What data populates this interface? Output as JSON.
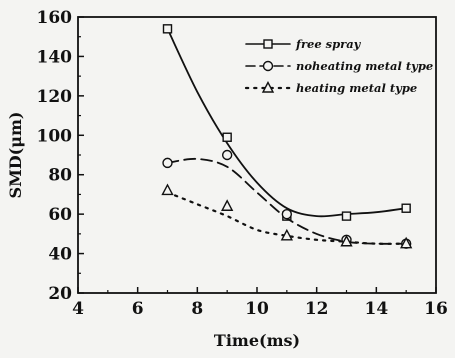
{
  "chart_data": {
    "type": "line",
    "title": "",
    "xlabel": "Time(ms)",
    "ylabel": "SMD(μm)",
    "xlim": [
      4,
      16
    ],
    "ylim": [
      20,
      160
    ],
    "xticks": [
      4,
      6,
      8,
      10,
      12,
      14,
      16
    ],
    "yticks": [
      20,
      40,
      60,
      80,
      100,
      120,
      140,
      160
    ],
    "grid": false,
    "legend_position": "top-right",
    "x": [
      7,
      9,
      11,
      13,
      15
    ],
    "series": [
      {
        "name": "free spray",
        "marker": "square",
        "line_style": "solid",
        "values": [
          154,
          99,
          59,
          59,
          63
        ],
        "curve": [
          [
            7,
            154
          ],
          [
            8,
            122
          ],
          [
            9,
            96
          ],
          [
            10,
            76
          ],
          [
            11,
            63
          ],
          [
            12,
            59
          ],
          [
            13,
            60
          ],
          [
            14,
            61
          ],
          [
            15,
            63
          ]
        ]
      },
      {
        "name": "noheating metal type",
        "marker": "circle",
        "line_style": "dashed",
        "values": [
          86,
          90,
          60,
          47,
          45
        ],
        "curve": [
          [
            7,
            86
          ],
          [
            8,
            88
          ],
          [
            9,
            84
          ],
          [
            10,
            71
          ],
          [
            11,
            58
          ],
          [
            12,
            50
          ],
          [
            13,
            46
          ],
          [
            14,
            45
          ],
          [
            15,
            45
          ]
        ]
      },
      {
        "name": "heating metal type",
        "marker": "triangle",
        "line_style": "dotted",
        "values": [
          72,
          64,
          49,
          46,
          45
        ],
        "curve": [
          [
            7,
            71
          ],
          [
            8,
            65
          ],
          [
            9,
            59
          ],
          [
            10,
            52
          ],
          [
            11,
            49
          ],
          [
            12,
            47
          ],
          [
            13,
            46
          ],
          [
            14,
            45
          ],
          [
            15,
            45
          ]
        ]
      }
    ],
    "colors": {
      "series": "#111111",
      "axes": "#111111",
      "background": "#f4f4f2"
    }
  }
}
